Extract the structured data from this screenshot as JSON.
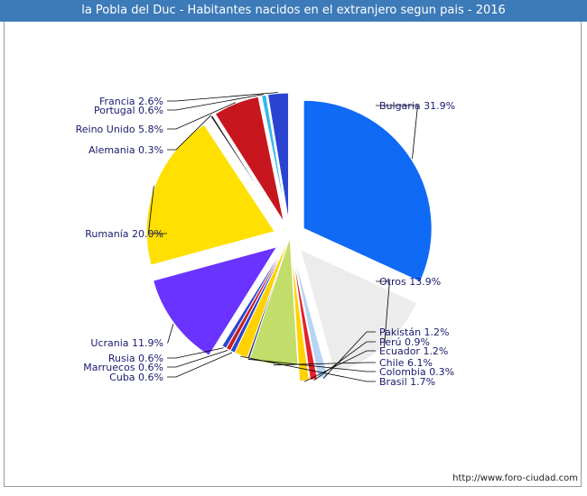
{
  "chart_data": {
    "type": "pie",
    "title": "la Pobla del Duc - Habitantes nacidos en el extranjero segun pais - 2016",
    "unit": "%",
    "slices": [
      {
        "name": "Bulgaria",
        "value": 31.9,
        "color": "#0f6af5",
        "exploded": true
      },
      {
        "name": "Otros",
        "value": 13.9,
        "color": "#ececec",
        "exploded": true
      },
      {
        "name": "Pakistán",
        "value": 1.2,
        "color": "#b6d4f4",
        "exploded": true
      },
      {
        "name": "Perú",
        "value": 0.9,
        "color": "#e8202a",
        "exploded": true
      },
      {
        "name": "Ecuador",
        "value": 1.2,
        "color": "#ffd200",
        "exploded": true
      },
      {
        "name": "Chile",
        "value": 6.1,
        "color": "#c2dd6a",
        "exploded": false
      },
      {
        "name": "Colombia",
        "value": 0.3,
        "color": "#1b2f6e",
        "exploded": false
      },
      {
        "name": "Brasil",
        "value": 1.7,
        "color": "#ffd200",
        "exploded": false
      },
      {
        "name": "Cuba",
        "value": 0.6,
        "color": "#2a44d1",
        "exploded": false
      },
      {
        "name": "Marruecos",
        "value": 0.6,
        "color": "#c81e1e",
        "exploded": false
      },
      {
        "name": "Rusia",
        "value": 0.6,
        "color": "#2a44d1",
        "exploded": false
      },
      {
        "name": "Ucrania",
        "value": 11.9,
        "color": "#6a33ff",
        "exploded": true
      },
      {
        "name": "Rumanía",
        "value": 20.0,
        "color": "#ffe000",
        "exploded": true
      },
      {
        "name": "Alemania",
        "value": 0.3,
        "color": "#1a1a1a",
        "exploded": true
      },
      {
        "name": "Reino Unido",
        "value": 5.8,
        "color": "#c8161e",
        "exploded": true
      },
      {
        "name": "Portugal",
        "value": 0.6,
        "color": "#33b8ee",
        "exploded": true
      },
      {
        "name": "Francia",
        "value": 2.6,
        "color": "#2a44d1",
        "exploded": true
      }
    ],
    "labels": [
      {
        "text": "Bulgaria 31.9%",
        "side": "right",
        "slice": 0
      },
      {
        "text": "Otros 13.9%",
        "side": "right",
        "slice": 1
      },
      {
        "text": "Pakistán 1.2%",
        "side": "right",
        "slice": 2
      },
      {
        "text": "Perú 0.9%",
        "side": "right",
        "slice": 3
      },
      {
        "text": "Ecuador 1.2%",
        "side": "right",
        "slice": 4
      },
      {
        "text": "Chile 6.1%",
        "side": "right",
        "slice": 5
      },
      {
        "text": "Colombia 0.3%",
        "side": "right",
        "slice": 6
      },
      {
        "text": "Brasil 1.7%",
        "side": "right",
        "slice": 7
      },
      {
        "text": "Cuba 0.6%",
        "side": "left",
        "slice": 8
      },
      {
        "text": "Marruecos 0.6%",
        "side": "left",
        "slice": 9
      },
      {
        "text": "Rusia 0.6%",
        "side": "left",
        "slice": 10
      },
      {
        "text": "Ucrania 11.9%",
        "side": "left",
        "slice": 11
      },
      {
        "text": "Rumanía 20.0%",
        "side": "left",
        "slice": 12
      },
      {
        "text": "Alemania 0.3%",
        "side": "left",
        "slice": 13
      },
      {
        "text": "Reino Unido 5.8%",
        "side": "left",
        "slice": 14
      },
      {
        "text": "Portugal 0.6%",
        "side": "left",
        "slice": 15
      },
      {
        "text": "Francia 2.6%",
        "side": "left",
        "slice": 16
      }
    ]
  },
  "footer": "http://www.foro-ciudad.com"
}
